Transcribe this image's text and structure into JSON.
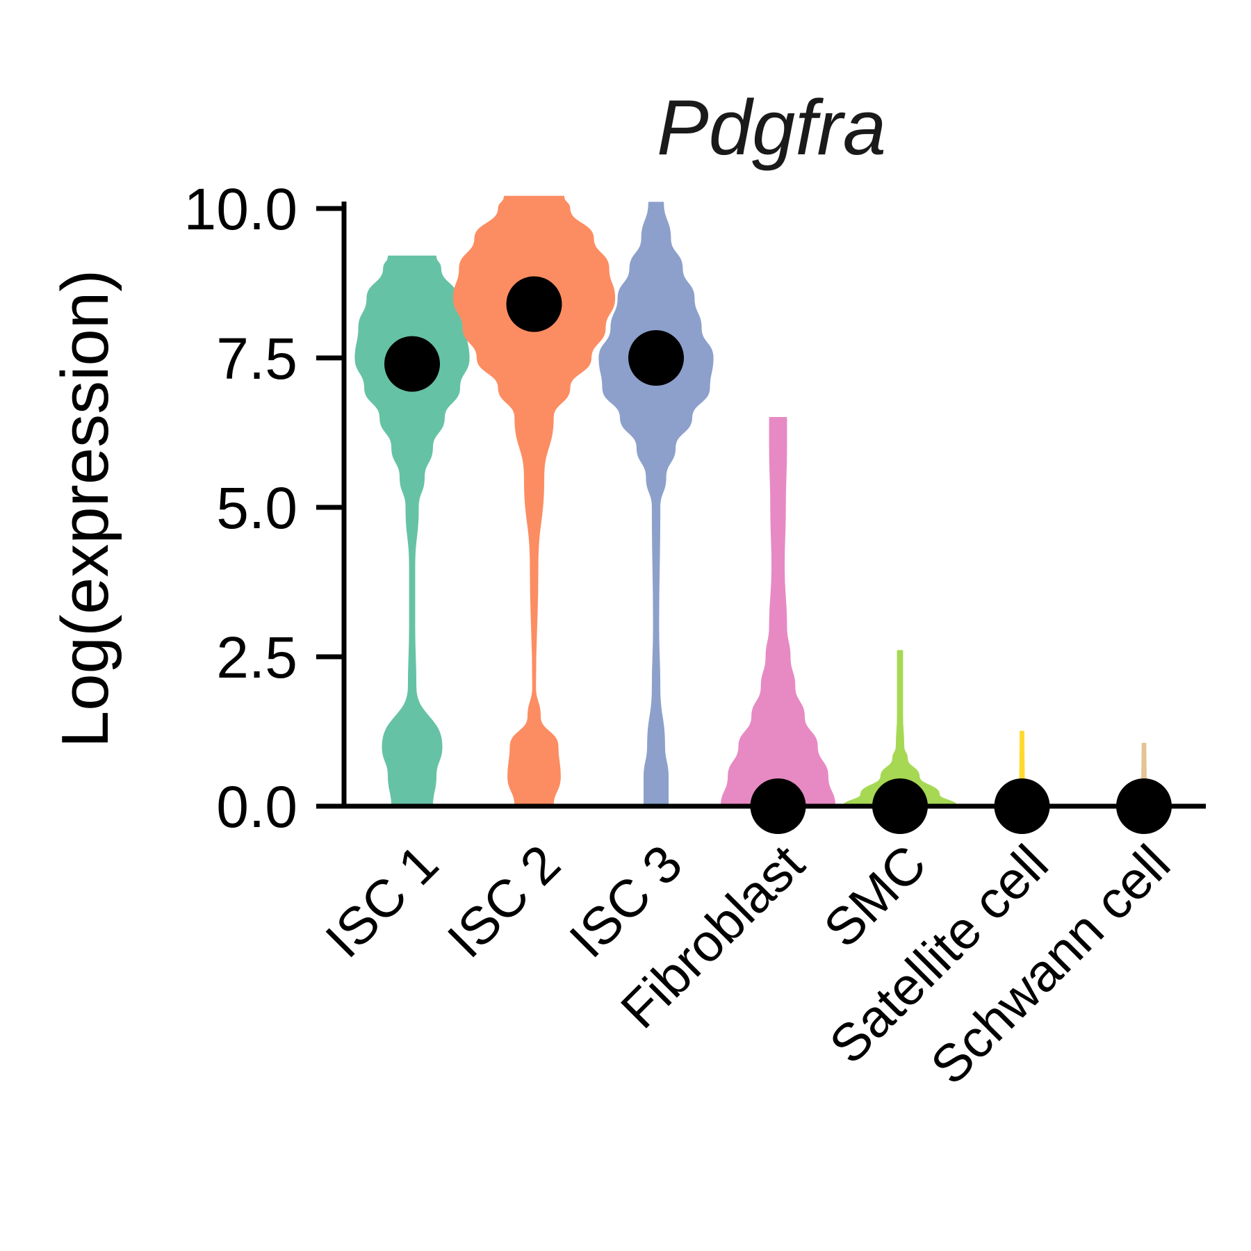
{
  "chart_data": {
    "type": "violin",
    "title": "Pdgfra",
    "xlabel": "",
    "ylabel": "Log(expression)",
    "ylim": [
      0,
      10
    ],
    "yticks": [
      "0.0",
      "2.5",
      "5.0",
      "7.5",
      "10.0"
    ],
    "ytick_values": [
      0,
      2.5,
      5,
      7.5,
      10
    ],
    "grid": false,
    "legend": "none",
    "categories": [
      "ISC 1",
      "ISC 2",
      "ISC 3",
      "Fibroblast",
      "SMC",
      "Satellite cell",
      "Schwann cell"
    ],
    "colors": [
      "#66c2a5",
      "#fc8d62",
      "#8da0cb",
      "#e78ac3",
      "#a6d854",
      "#ffd92f",
      "#e5c494"
    ],
    "medians": [
      7.4,
      8.4,
      7.5,
      0.0,
      0.0,
      0.0,
      0.0
    ],
    "violins": [
      {
        "max": 9.2,
        "profile": [
          [
            0,
            0.17
          ],
          [
            0.5,
            0.2
          ],
          [
            1,
            0.25
          ],
          [
            2,
            0.03
          ],
          [
            3,
            0.02
          ],
          [
            4,
            0.02
          ],
          [
            5,
            0.05
          ],
          [
            5.5,
            0.1
          ],
          [
            6,
            0.17
          ],
          [
            6.5,
            0.27
          ],
          [
            7,
            0.4
          ],
          [
            7.5,
            0.48
          ],
          [
            8,
            0.45
          ],
          [
            8.5,
            0.38
          ],
          [
            9,
            0.24
          ],
          [
            9.2,
            0.2
          ]
        ]
      },
      {
        "max": 10.2,
        "profile": [
          [
            0,
            0.16
          ],
          [
            0.5,
            0.22
          ],
          [
            1,
            0.2
          ],
          [
            1.5,
            0.05
          ],
          [
            2,
            0.01
          ],
          [
            4,
            0.03
          ],
          [
            5.5,
            0.08
          ],
          [
            6.5,
            0.16
          ],
          [
            7,
            0.3
          ],
          [
            7.5,
            0.48
          ],
          [
            8,
            0.6
          ],
          [
            8.5,
            0.68
          ],
          [
            9,
            0.63
          ],
          [
            9.5,
            0.5
          ],
          [
            10,
            0.3
          ],
          [
            10.2,
            0.25
          ]
        ]
      },
      {
        "max": 10.1,
        "profile": [
          [
            0,
            0.1
          ],
          [
            0.5,
            0.1
          ],
          [
            1,
            0.07
          ],
          [
            2,
            0.03
          ],
          [
            3,
            0.02
          ],
          [
            5,
            0.03
          ],
          [
            5.5,
            0.08
          ],
          [
            6,
            0.16
          ],
          [
            6.5,
            0.3
          ],
          [
            7,
            0.45
          ],
          [
            7.5,
            0.48
          ],
          [
            8,
            0.38
          ],
          [
            8.5,
            0.32
          ],
          [
            9,
            0.22
          ],
          [
            9.5,
            0.12
          ],
          [
            10.1,
            0.06
          ]
        ]
      },
      {
        "max": 6.5,
        "profile": [
          [
            0,
            0.48
          ],
          [
            0.5,
            0.42
          ],
          [
            1,
            0.33
          ],
          [
            1.5,
            0.22
          ],
          [
            2,
            0.14
          ],
          [
            2.5,
            0.1
          ],
          [
            3,
            0.07
          ],
          [
            4,
            0.05
          ],
          [
            5,
            0.06
          ],
          [
            6,
            0.07
          ],
          [
            6.5,
            0.07
          ]
        ]
      },
      {
        "max": 2.6,
        "profile": [
          [
            0,
            0.48
          ],
          [
            0.2,
            0.33
          ],
          [
            0.5,
            0.16
          ],
          [
            0.8,
            0.06
          ],
          [
            1,
            0.03
          ],
          [
            1.5,
            0.02
          ],
          [
            2.6,
            0.02
          ]
        ]
      },
      {
        "max": 1.25,
        "profile": [
          [
            0,
            0.22
          ],
          [
            0.08,
            0.06
          ],
          [
            0.2,
            0.018
          ],
          [
            1.25,
            0.014
          ]
        ]
      },
      {
        "max": 1.05,
        "profile": [
          [
            0,
            0.22
          ],
          [
            0.08,
            0.06
          ],
          [
            0.2,
            0.018
          ],
          [
            1.05,
            0.014
          ]
        ]
      }
    ]
  }
}
